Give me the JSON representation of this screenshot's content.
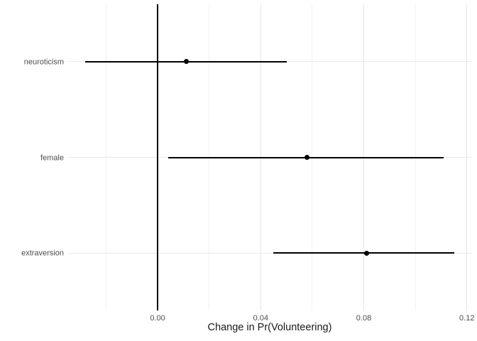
{
  "chart_data": {
    "type": "scatter",
    "subtype": "dot-whisker-coefficient-plot",
    "title": "",
    "xlabel": "Change in Pr(Volunteering)",
    "ylabel": "",
    "categories": [
      "neuroticism",
      "female",
      "extraversion"
    ],
    "series": [
      {
        "name": "neuroticism",
        "estimate": 0.011,
        "ci_low": -0.028,
        "ci_high": 0.05
      },
      {
        "name": "female",
        "estimate": 0.058,
        "ci_low": 0.004,
        "ci_high": 0.111
      },
      {
        "name": "extraversion",
        "estimate": 0.081,
        "ci_low": 0.045,
        "ci_high": 0.115
      }
    ],
    "x_major_ticks": [
      0.0,
      0.04,
      0.08,
      0.12
    ],
    "x_tick_labels": [
      "0.00",
      "0.04",
      "0.08",
      "0.12"
    ],
    "x_minor_ticks": [
      -0.02,
      0.02,
      0.06,
      0.1
    ],
    "xlim": [
      -0.035,
      0.122
    ],
    "reference_line_x": 0,
    "grid": true,
    "legend": false
  },
  "colors": {
    "background": "#ffffff",
    "grid_major": "#e4e4e4",
    "grid_minor": "#f2f2f2",
    "horizontal_grid": "#ebebeb",
    "axis_text": "#4d4d4d",
    "axis_title": "#1a1a1a",
    "data_black": "#000000",
    "reference_line": "#000000"
  }
}
